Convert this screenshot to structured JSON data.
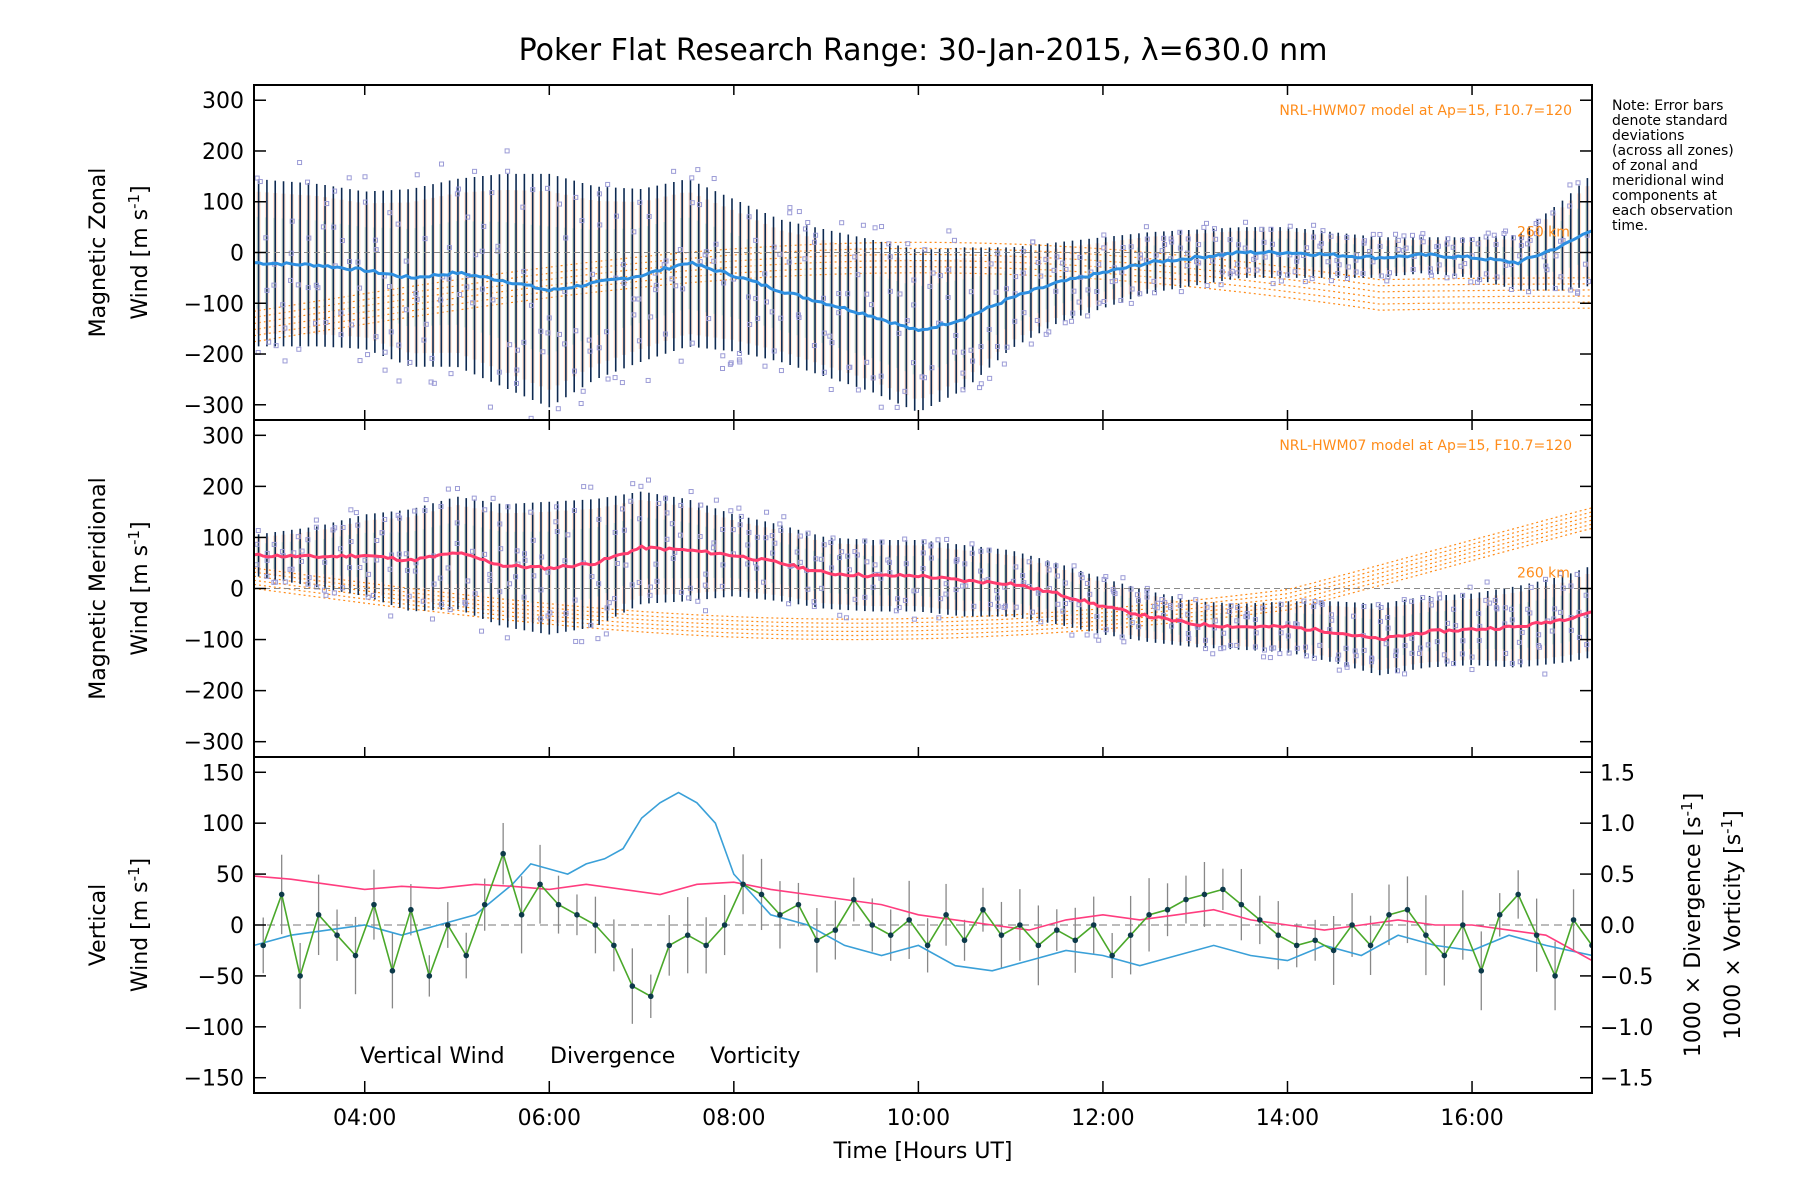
{
  "title": "Poker Flat Research Range: 30-Jan-2015, λ=630.0 nm",
  "note": [
    "Note: Error bars",
    "denote standard",
    "deviations",
    "(across all zones)",
    "of zonal and",
    "meridional wind",
    "components at",
    "each observation",
    "time."
  ],
  "model_label": "NRL-HWM07 model at Ap=15, F10.7=120",
  "height_label": "260 km",
  "colors": {
    "zonal": "#2e8fe0",
    "meridional": "#ff3d6e",
    "vertical": "#4aa82a",
    "divergence": "#3aa0d8",
    "vorticity": "#ff3d7f",
    "errorbar": "#0d2a52",
    "outlier": "#9b9bd6",
    "model": "#ff8c1a"
  },
  "chart_data": [
    {
      "type": "line",
      "name": "zonal",
      "ylabel_line1": "Magnetic Zonal",
      "ylabel_line2": "Wind [m s",
      "ylabel_sup": "-1",
      "ylabel_close": "]",
      "xlim": [
        2.8,
        17.3
      ],
      "ylim": [
        -330,
        330
      ],
      "yticks": [
        -300,
        -200,
        -100,
        0,
        100,
        200,
        300
      ],
      "ytick_labels": [
        "−300",
        "−200",
        "−100",
        "0",
        "100",
        "200",
        "300"
      ],
      "x": [
        2.8,
        3.5,
        4.0,
        4.5,
        5.0,
        5.5,
        6.0,
        6.5,
        7.0,
        7.5,
        8.0,
        8.5,
        9.0,
        9.5,
        10.0,
        10.5,
        11.0,
        11.5,
        12.0,
        12.5,
        13.0,
        13.5,
        14.0,
        14.5,
        15.0,
        15.5,
        16.0,
        16.5,
        17.0,
        17.3
      ],
      "y": [
        -20,
        -25,
        -35,
        -50,
        -40,
        -55,
        -75,
        -60,
        -45,
        -20,
        -45,
        -75,
        -100,
        -125,
        -155,
        -130,
        -90,
        -60,
        -40,
        -20,
        -10,
        0,
        0,
        -5,
        -10,
        -5,
        -10,
        -20,
        15,
        45
      ],
      "errorbar_sd": [
        165,
        160,
        155,
        175,
        185,
        210,
        230,
        190,
        170,
        165,
        150,
        140,
        145,
        150,
        160,
        140,
        100,
        80,
        70,
        60,
        55,
        50,
        50,
        45,
        40,
        35,
        40,
        55,
        90,
        110
      ]
    },
    {
      "type": "line",
      "name": "meridional",
      "ylabel_line1": "Magnetic Meridional",
      "ylabel_line2": "Wind [m s",
      "ylabel_sup": "-1",
      "ylabel_close": "]",
      "xlim": [
        2.8,
        17.3
      ],
      "ylim": [
        -330,
        330
      ],
      "yticks": [
        -300,
        -200,
        -100,
        0,
        100,
        200,
        300
      ],
      "ytick_labels": [
        "−300",
        "−200",
        "−100",
        "0",
        "100",
        "200",
        "300"
      ],
      "x": [
        2.8,
        3.5,
        4.0,
        4.5,
        5.0,
        5.5,
        6.0,
        6.5,
        7.0,
        7.5,
        8.0,
        8.5,
        9.0,
        9.5,
        10.0,
        10.5,
        11.0,
        11.5,
        12.0,
        12.5,
        13.0,
        13.5,
        14.0,
        14.5,
        15.0,
        15.5,
        16.0,
        16.5,
        17.0,
        17.3
      ],
      "y": [
        65,
        62,
        65,
        55,
        70,
        45,
        40,
        50,
        80,
        75,
        65,
        50,
        30,
        25,
        25,
        15,
        10,
        -10,
        -35,
        -55,
        -70,
        -75,
        -75,
        -85,
        -100,
        -85,
        -80,
        -75,
        -60,
        -45
      ],
      "errorbar_sd": [
        40,
        60,
        80,
        100,
        110,
        120,
        130,
        125,
        110,
        100,
        80,
        75,
        70,
        70,
        70,
        70,
        65,
        60,
        55,
        50,
        45,
        45,
        50,
        60,
        70,
        70,
        70,
        80,
        85,
        90
      ]
    },
    {
      "type": "line",
      "name": "vertical",
      "ylabel_line1": "Vertical",
      "ylabel_line2": "Wind [m s",
      "ylabel_sup": "-1",
      "ylabel_close": "]",
      "right_label_div": "1000 × Divergence [s",
      "right_label_vort": "1000 × Vorticity [s",
      "right_label_sup": "-1",
      "right_label_close": "]",
      "xlim": [
        2.8,
        17.3
      ],
      "ylim": [
        -165,
        165
      ],
      "yticks": [
        -150,
        -100,
        -50,
        0,
        50,
        100,
        150
      ],
      "ytick_labels": [
        "−150",
        "−100",
        "−50",
        "0",
        "50",
        "100",
        "150"
      ],
      "y2lim": [
        -1.65,
        1.65
      ],
      "y2ticks": [
        -1.5,
        -1.0,
        -0.5,
        0.0,
        0.5,
        1.0,
        1.5
      ],
      "y2tick_labels": [
        "−1.5",
        "−1.0",
        "−0.5",
        "0.0",
        "0.5",
        "1.0",
        "1.5"
      ],
      "xticks": [
        4,
        6,
        8,
        10,
        12,
        14,
        16
      ],
      "xtick_labels": [
        "04:00",
        "06:00",
        "08:00",
        "10:00",
        "12:00",
        "14:00",
        "16:00"
      ],
      "xlabel": "Time [Hours UT]",
      "legend": [
        "Vertical Wind",
        "Divergence",
        "Vorticity"
      ],
      "vertical_x": [
        2.9,
        3.1,
        3.3,
        3.5,
        3.7,
        3.9,
        4.1,
        4.3,
        4.5,
        4.7,
        4.9,
        5.1,
        5.3,
        5.5,
        5.7,
        5.9,
        6.1,
        6.3,
        6.5,
        6.7,
        6.9,
        7.1,
        7.3,
        7.5,
        7.7,
        7.9,
        8.1,
        8.3,
        8.5,
        8.7,
        8.9,
        9.1,
        9.3,
        9.5,
        9.7,
        9.9,
        10.1,
        10.3,
        10.5,
        10.7,
        10.9,
        11.1,
        11.3,
        11.5,
        11.7,
        11.9,
        12.1,
        12.3,
        12.5,
        12.7,
        12.9,
        13.1,
        13.3,
        13.5,
        13.7,
        13.9,
        14.1,
        14.3,
        14.5,
        14.7,
        14.9,
        15.1,
        15.3,
        15.5,
        15.7,
        15.9,
        16.1,
        16.3,
        16.5,
        16.7,
        16.9,
        17.1,
        17.3
      ],
      "vertical_y": [
        -20,
        30,
        -50,
        10,
        -10,
        -30,
        20,
        -45,
        15,
        -50,
        0,
        -30,
        20,
        70,
        10,
        40,
        20,
        10,
        0,
        -20,
        -60,
        -70,
        -20,
        -10,
        -20,
        0,
        40,
        30,
        10,
        20,
        -15,
        -5,
        25,
        0,
        -10,
        5,
        -20,
        10,
        -15,
        15,
        -10,
        0,
        -20,
        -5,
        -15,
        0,
        -30,
        -10,
        10,
        15,
        25,
        30,
        35,
        20,
        5,
        -10,
        -20,
        -15,
        -25,
        0,
        -20,
        10,
        15,
        -10,
        -30,
        0,
        -45,
        10,
        30,
        -10,
        -50,
        5,
        -20
      ],
      "divergence_x": [
        2.8,
        3.2,
        3.6,
        4.0,
        4.4,
        4.8,
        5.2,
        5.6,
        5.8,
        6.0,
        6.2,
        6.4,
        6.6,
        6.8,
        7.0,
        7.2,
        7.4,
        7.6,
        7.8,
        8.0,
        8.2,
        8.4,
        8.8,
        9.2,
        9.6,
        10.0,
        10.4,
        10.8,
        11.2,
        11.6,
        12.0,
        12.4,
        12.8,
        13.2,
        13.6,
        14.0,
        14.4,
        14.8,
        15.2,
        15.6,
        16.0,
        16.4,
        16.8,
        17.3
      ],
      "divergence_y": [
        -0.2,
        -0.1,
        -0.05,
        0.0,
        -0.1,
        0.0,
        0.1,
        0.4,
        0.6,
        0.55,
        0.5,
        0.6,
        0.65,
        0.75,
        1.05,
        1.2,
        1.3,
        1.2,
        1.0,
        0.5,
        0.3,
        0.1,
        0.0,
        -0.2,
        -0.3,
        -0.2,
        -0.4,
        -0.45,
        -0.35,
        -0.25,
        -0.3,
        -0.4,
        -0.3,
        -0.2,
        -0.3,
        -0.35,
        -0.2,
        -0.3,
        -0.1,
        -0.2,
        -0.25,
        -0.1,
        -0.2,
        -0.3
      ],
      "vorticity_x": [
        2.8,
        3.2,
        3.6,
        4.0,
        4.4,
        4.8,
        5.2,
        5.6,
        6.0,
        6.4,
        6.8,
        7.2,
        7.6,
        8.0,
        8.4,
        8.8,
        9.2,
        9.6,
        10.0,
        10.4,
        10.8,
        11.2,
        11.6,
        12.0,
        12.4,
        12.8,
        13.2,
        13.6,
        14.0,
        14.4,
        14.8,
        15.2,
        15.6,
        16.0,
        16.4,
        16.8,
        17.3
      ],
      "vorticity_y": [
        0.48,
        0.45,
        0.4,
        0.35,
        0.38,
        0.36,
        0.4,
        0.38,
        0.35,
        0.4,
        0.35,
        0.3,
        0.4,
        0.42,
        0.35,
        0.3,
        0.25,
        0.2,
        0.1,
        0.05,
        0.0,
        -0.05,
        0.05,
        0.1,
        0.05,
        0.1,
        0.15,
        0.05,
        0.0,
        -0.05,
        0.0,
        0.05,
        0.0,
        0.0,
        -0.05,
        -0.1,
        -0.35
      ]
    }
  ]
}
